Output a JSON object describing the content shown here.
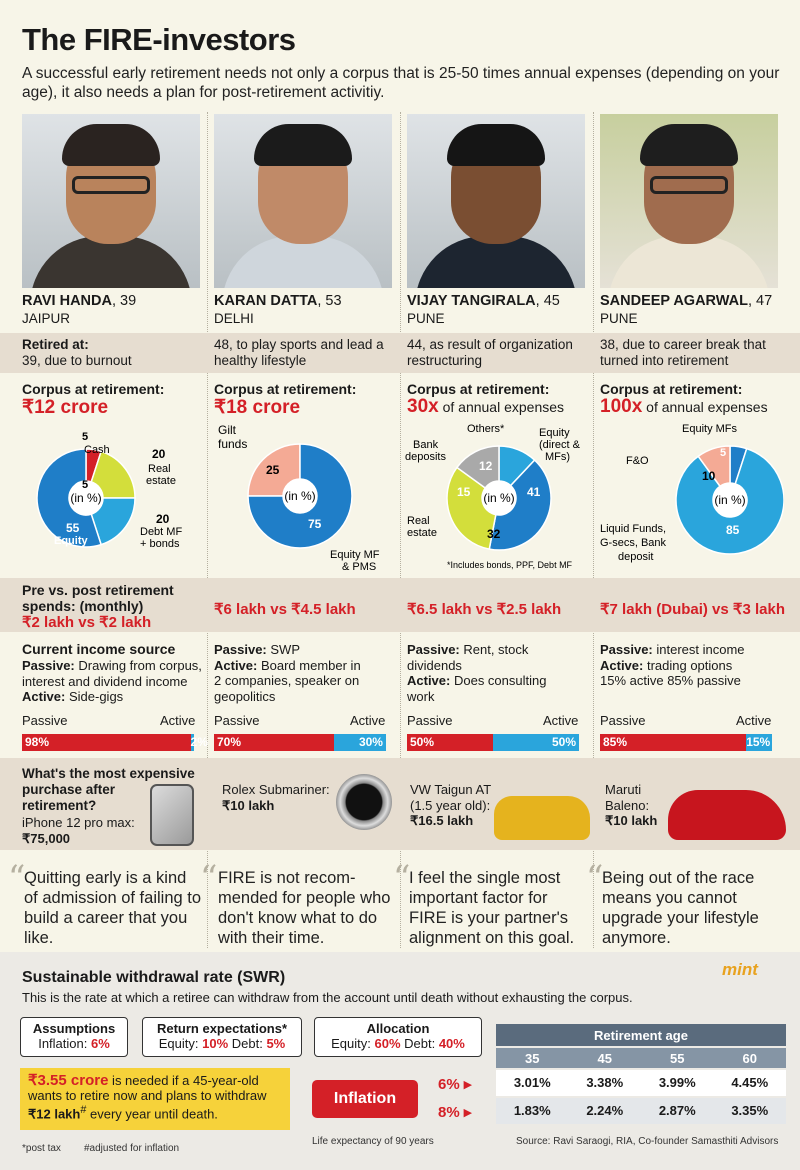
{
  "title": "The FIRE-investors",
  "subtitle": "A successful early retirement needs not only a corpus that is 25-50 times annual expenses (depending on your age), it also needs a plan for post-retirement activitiy.",
  "labels": {
    "corpus_header": "Corpus at retirement:",
    "spends_header_1": "Pre vs. post retirement",
    "spends_header_2": "spends: (monthly)",
    "income_header": "Current income source",
    "purchase_header_1": "What's the most expensive",
    "purchase_header_2": "purchase after",
    "purchase_header_3": "retirement?",
    "passive": "Passive",
    "active": "Active",
    "in_pct": "(in %)",
    "retired_at": "Retired at:"
  },
  "investors": [
    {
      "name": "RAVI HANDA",
      "age": ", 39",
      "city": "JAIPUR",
      "retired_age": "39, due to burnout",
      "corpus": "₹12 crore",
      "corpus_suffix": "",
      "spends": "₹2 lakh vs ₹2 lakh",
      "income_lines": [
        [
          "Passive:",
          " Drawing from corpus,"
        ],
        [
          "",
          "interest and dividend income"
        ],
        [
          "Active:",
          " Side-gigs"
        ]
      ],
      "passive_pct": "98%",
      "active_pct": "2%",
      "passive_value": 98,
      "purchase": "iPhone 12 pro max:",
      "purchase_price": "₹75,000",
      "quote": "Quitting early is a kind of admission of failing to build a career that you like.",
      "chart_labels": {
        "cash": "Cash",
        "cash_val": "5",
        "real": "Real",
        "real2": "estate",
        "real_val": "20",
        "debt": "Debt MF",
        "debt2": "+ bonds",
        "debt_val": "20",
        "equity": "Equity",
        "equity_val": "55"
      }
    },
    {
      "name": "KARAN DATTA",
      "age": ", 53",
      "city": "DELHI",
      "retired_age": "48, to play sports and lead a healthy lifestyle",
      "corpus": "₹18 crore",
      "corpus_suffix": "",
      "spends": "₹6 lakh vs ₹4.5 lakh",
      "income_lines": [
        [
          "Passive:",
          " SWP"
        ],
        [
          "Active:",
          " Board member in"
        ],
        [
          "",
          "2 companies, speaker on"
        ],
        [
          "",
          "geopolitics"
        ]
      ],
      "passive_pct": "70%",
      "active_pct": "30%",
      "passive_value": 70,
      "purchase": "Rolex Submariner:",
      "purchase_price": "₹10 lakh",
      "quote": "FIRE is not recom-mended for people who don't know what to do with their time.",
      "chart_labels": {
        "gilt": "Gilt",
        "gilt2": "funds",
        "gilt_val": "25",
        "eq": "Equity MF",
        "eq2": "& PMS",
        "eq_val": "75"
      }
    },
    {
      "name": "VIJAY TANGIRALA",
      "age": ", 45",
      "city": "PUNE",
      "retired_age": "44, as result of organization restructuring",
      "corpus": "30x",
      "corpus_suffix": " of annual expenses",
      "spends": "₹6.5 lakh vs ₹2.5 lakh",
      "income_lines": [
        [
          "Passive:",
          " Rent, stock"
        ],
        [
          "",
          "dividends"
        ],
        [
          "Active:",
          " Does consulting"
        ],
        [
          "",
          "work"
        ]
      ],
      "passive_pct": "50%",
      "active_pct": "50%",
      "passive_value": 50,
      "purchase": "VW Taigun AT (1.5 year old):",
      "purchase_price": "₹16.5 lakh",
      "quote": "I feel the single most important factor for FIRE is your partner's alignment on this goal.",
      "chart_labels": {
        "others": "Others*",
        "others_val": "12",
        "bank": "Bank",
        "bank2": "deposits",
        "bank_val": "15",
        "equity": "Equity",
        "equity2": "(direct &",
        "equity3": "MFs)",
        "equity_val": "41",
        "real": "Real",
        "real2": "estate",
        "real_val": "32",
        "note": "*Includes bonds, PPF, Debt MF"
      }
    },
    {
      "name": "SANDEEP AGARWAL",
      "age": ", 47",
      "city": "PUNE",
      "retired_age": "38, due to career break that turned into retirement",
      "corpus": "100x",
      "corpus_suffix": " of annual expenses",
      "spends": "₹7 lakh (Dubai) vs ₹3 lakh",
      "income_lines": [
        [
          "Passive:",
          " interest income"
        ],
        [
          "Active:",
          " trading options"
        ],
        [
          "",
          "15% active 85% passive"
        ]
      ],
      "passive_pct": "85%",
      "active_pct": "15%",
      "passive_value": 85,
      "purchase": "Maruti Baleno:",
      "purchase_price": "₹10 lakh",
      "quote": "Being out of the race means you cannot upgrade your lifestyle anymore.",
      "chart_labels": {
        "eqmf": "Equity MFs",
        "eqmf_val": "5",
        "fo": "F&O",
        "fo_val": "10",
        "liquid": "Liquid Funds,",
        "liquid2": "G-secs, Bank",
        "liquid3": "deposit",
        "liquid_val": "85"
      }
    }
  ],
  "chart_data": [
    {
      "type": "pie",
      "title": "Ravi Handa corpus allocation (in %)",
      "categories": [
        "Cash",
        "Real estate",
        "Debt MF + bonds",
        "Equity"
      ],
      "values": [
        5,
        20,
        20,
        55
      ]
    },
    {
      "type": "pie",
      "title": "Karan Datta corpus allocation (in %)",
      "categories": [
        "Gilt funds",
        "Equity MF & PMS"
      ],
      "values": [
        25,
        75
      ]
    },
    {
      "type": "pie",
      "title": "Vijay Tangirala corpus allocation (in %)",
      "categories": [
        "Others*",
        "Equity (direct & MFs)",
        "Real estate",
        "Bank deposits"
      ],
      "values": [
        12,
        41,
        32,
        15
      ]
    },
    {
      "type": "pie",
      "title": "Sandeep Agarwal corpus allocation (in %)",
      "categories": [
        "Equity MFs",
        "Liquid Funds, G-secs, Bank deposit",
        "F&O"
      ],
      "values": [
        5,
        85,
        10
      ]
    },
    {
      "type": "table",
      "title": "Retirement age vs Inflation",
      "columns": [
        "35",
        "45",
        "55",
        "60"
      ],
      "rows": [
        {
          "inflation": "6%",
          "values": [
            "3.01%",
            "3.38%",
            "3.99%",
            "4.45%"
          ]
        },
        {
          "inflation": "8%",
          "values": [
            "1.83%",
            "2.24%",
            "2.87%",
            "3.35%"
          ]
        }
      ]
    }
  ],
  "swr": {
    "title": "Sustainable withdrawal rate (SWR)",
    "brand": "mint",
    "desc": "This is the rate at which a retiree can withdraw from the account until death without exhausting the corpus.",
    "assumptions_title": "Assumptions",
    "assumptions_label": "Inflation: ",
    "assumptions_val": "6%",
    "return_title": "Return expectations*",
    "return_eq_label": "Equity: ",
    "return_eq": "10%",
    "return_debt_label": " Debt: ",
    "return_debt": "5%",
    "alloc_title": "Allocation",
    "alloc_eq_label": "Equity: ",
    "alloc_eq": "60%",
    "alloc_debt_label": " Debt: ",
    "alloc_debt": "40%",
    "need_amount": "₹3.55 crore",
    "need_text1": " is needed if a 45-year-old",
    "need_text2": "wants to retire now and plans to withdraw",
    "need_amount2": "₹12 lakh",
    "need_sup": "#",
    "need_text3": " every year until death.",
    "retirement_age": "Retirement age",
    "inflation": "Inflation",
    "foot1": "*post tax",
    "foot2": "#adjusted for inflation",
    "life": "Life expectancy of 90 years",
    "source": "Source: Ravi Saraogi, RIA, Co-founder Samasthiti Advisors"
  },
  "colors": {
    "red": "#d42027",
    "blue": "#1f7ec8",
    "lightblue": "#2aa5dc",
    "lime": "#d3de3b",
    "salmon": "#f4aa95",
    "gray": "#a9a9a9"
  }
}
